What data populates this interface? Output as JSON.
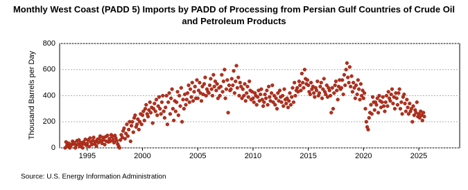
{
  "chart_data": {
    "type": "scatter",
    "title": "Monthly West Coast (PADD 5) Imports by PADD of Processing from Persian Gulf Countries of Crude Oil and Petroleum Products",
    "y_label": "Thousand Barrels per Day",
    "source": "Source: U.S. Energy Information Administration",
    "color": "#b5301c",
    "xlim": [
      1992.5,
      2028.7
    ],
    "xticks": [
      1995,
      2000,
      2005,
      2010,
      2015,
      2020,
      2025
    ],
    "ylim": [
      0,
      800
    ],
    "yticks": [
      0,
      200,
      400,
      600,
      800
    ],
    "grid": true,
    "x": [
      1993,
      1993.08,
      1993.17,
      1993.25,
      1993.33,
      1993.42,
      1993.5,
      1993.58,
      1993.67,
      1993.75,
      1993.83,
      1993.92,
      1994,
      1994.08,
      1994.17,
      1994.25,
      1994.33,
      1994.42,
      1994.5,
      1994.58,
      1994.67,
      1994.75,
      1994.83,
      1994.92,
      1995,
      1995.08,
      1995.17,
      1995.25,
      1995.33,
      1995.42,
      1995.5,
      1995.58,
      1995.67,
      1995.75,
      1995.83,
      1995.92,
      1996,
      1996.08,
      1996.17,
      1996.25,
      1996.33,
      1996.42,
      1996.5,
      1996.58,
      1996.67,
      1996.75,
      1996.83,
      1996.92,
      1997,
      1997.08,
      1997.17,
      1997.25,
      1997.33,
      1997.42,
      1997.5,
      1997.58,
      1997.67,
      1997.75,
      1997.83,
      1997.92,
      1998,
      1998.08,
      1998.17,
      1998.25,
      1998.33,
      1998.42,
      1998.5,
      1998.58,
      1998.67,
      1998.75,
      1998.83,
      1998.92,
      1999,
      1999.08,
      1999.17,
      1999.25,
      1999.33,
      1999.42,
      1999.5,
      1999.58,
      1999.67,
      1999.75,
      1999.83,
      1999.92,
      2000,
      2000.08,
      2000.17,
      2000.25,
      2000.33,
      2000.42,
      2000.5,
      2000.58,
      2000.67,
      2000.75,
      2000.83,
      2000.92,
      2001,
      2001.08,
      2001.17,
      2001.25,
      2001.33,
      2001.42,
      2001.5,
      2001.58,
      2001.67,
      2001.75,
      2001.83,
      2001.92,
      2002,
      2002.08,
      2002.17,
      2002.25,
      2002.33,
      2002.42,
      2002.5,
      2002.58,
      2002.67,
      2002.75,
      2002.83,
      2002.92,
      2003,
      2003.08,
      2003.17,
      2003.25,
      2003.33,
      2003.42,
      2003.5,
      2003.58,
      2003.67,
      2003.75,
      2003.83,
      2003.92,
      2004,
      2004.08,
      2004.17,
      2004.25,
      2004.33,
      2004.42,
      2004.5,
      2004.58,
      2004.67,
      2004.75,
      2004.83,
      2004.92,
      2005,
      2005.08,
      2005.17,
      2005.25,
      2005.33,
      2005.42,
      2005.5,
      2005.58,
      2005.67,
      2005.75,
      2005.83,
      2005.92,
      2006,
      2006.08,
      2006.17,
      2006.25,
      2006.33,
      2006.42,
      2006.5,
      2006.58,
      2006.67,
      2006.75,
      2006.83,
      2006.92,
      2007,
      2007.08,
      2007.17,
      2007.25,
      2007.33,
      2007.42,
      2007.5,
      2007.58,
      2007.67,
      2007.75,
      2007.83,
      2007.92,
      2008,
      2008.08,
      2008.17,
      2008.25,
      2008.33,
      2008.42,
      2008.5,
      2008.58,
      2008.67,
      2008.75,
      2008.83,
      2008.92,
      2009,
      2009.08,
      2009.17,
      2009.25,
      2009.33,
      2009.42,
      2009.5,
      2009.58,
      2009.67,
      2009.75,
      2009.83,
      2009.92,
      2010,
      2010.08,
      2010.17,
      2010.25,
      2010.33,
      2010.42,
      2010.5,
      2010.58,
      2010.67,
      2010.75,
      2010.83,
      2010.92,
      2011,
      2011.08,
      2011.17,
      2011.25,
      2011.33,
      2011.42,
      2011.5,
      2011.58,
      2011.67,
      2011.75,
      2011.83,
      2011.92,
      2012,
      2012.08,
      2012.17,
      2012.25,
      2012.33,
      2012.42,
      2012.5,
      2012.58,
      2012.67,
      2012.75,
      2012.83,
      2012.92,
      2013,
      2013.08,
      2013.17,
      2013.25,
      2013.33,
      2013.42,
      2013.5,
      2013.58,
      2013.67,
      2013.75,
      2013.83,
      2013.92,
      2014,
      2014.08,
      2014.17,
      2014.25,
      2014.33,
      2014.42,
      2014.5,
      2014.58,
      2014.67,
      2014.75,
      2014.83,
      2014.92,
      2015,
      2015.08,
      2015.17,
      2015.25,
      2015.33,
      2015.42,
      2015.5,
      2015.58,
      2015.67,
      2015.75,
      2015.83,
      2015.92,
      2016,
      2016.08,
      2016.17,
      2016.25,
      2016.33,
      2016.42,
      2016.5,
      2016.58,
      2016.67,
      2016.75,
      2016.83,
      2016.92,
      2017,
      2017.08,
      2017.17,
      2017.25,
      2017.33,
      2017.42,
      2017.5,
      2017.58,
      2017.67,
      2017.75,
      2017.83,
      2017.92,
      2018,
      2018.08,
      2018.17,
      2018.25,
      2018.33,
      2018.42,
      2018.5,
      2018.58,
      2018.67,
      2018.75,
      2018.83,
      2018.92,
      2019,
      2019.08,
      2019.17,
      2019.25,
      2019.33,
      2019.42,
      2019.5,
      2019.58,
      2019.67,
      2019.75,
      2019.83,
      2019.92,
      2020,
      2020.08,
      2020.17,
      2020.25,
      2020.33,
      2020.42,
      2020.5,
      2020.58,
      2020.67,
      2020.75,
      2020.83,
      2020.92,
      2021,
      2021.08,
      2021.17,
      2021.25,
      2021.33,
      2021.42,
      2021.5,
      2021.58,
      2021.67,
      2021.75,
      2021.83,
      2021.92,
      2022,
      2022.08,
      2022.17,
      2022.25,
      2022.33,
      2022.42,
      2022.5,
      2022.58,
      2022.67,
      2022.75,
      2022.83,
      2022.92,
      2023,
      2023.08,
      2023.17,
      2023.25,
      2023.33,
      2023.42,
      2023.5,
      2023.58,
      2023.67,
      2023.75,
      2023.83,
      2023.92,
      2024,
      2024.08,
      2024.17,
      2024.25,
      2024.33,
      2024.42,
      2024.5,
      2024.58,
      2024.67,
      2024.75,
      2024.83,
      2024.92,
      2025,
      2025.08,
      2025.17,
      2025.25,
      2025.33,
      2025.42,
      2025.5
    ],
    "values": [
      0,
      45,
      20,
      10,
      35,
      0,
      15,
      25,
      50,
      30,
      40,
      0,
      20,
      55,
      30,
      60,
      10,
      40,
      25,
      0,
      45,
      30,
      65,
      20,
      35,
      60,
      10,
      75,
      45,
      25,
      55,
      80,
      30,
      50,
      15,
      65,
      40,
      70,
      90,
      55,
      35,
      80,
      60,
      25,
      85,
      50,
      95,
      45,
      70,
      50,
      100,
      85,
      60,
      40,
      95,
      75,
      55,
      30,
      15,
      0,
      60,
      100,
      80,
      130,
      150,
      70,
      110,
      180,
      90,
      140,
      200,
      50,
      170,
      200,
      120,
      230,
      250,
      160,
      180,
      220,
      140,
      200,
      260,
      180,
      250,
      280,
      210,
      300,
      330,
      260,
      240,
      290,
      350,
      270,
      310,
      190,
      300,
      340,
      280,
      370,
      250,
      320,
      390,
      300,
      260,
      350,
      400,
      280,
      230,
      310,
      400,
      180,
      350,
      420,
      260,
      380,
      450,
      300,
      210,
      360,
      280,
      350,
      430,
      250,
      400,
      320,
      460,
      200,
      370,
      300,
      410,
      330,
      370,
      420,
      480,
      350,
      450,
      390,
      500,
      360,
      430,
      470,
      380,
      520,
      380,
      440,
      500,
      420,
      360,
      470,
      410,
      490,
      540,
      400,
      450,
      430,
      420,
      480,
      530,
      450,
      400,
      560,
      470,
      510,
      440,
      490,
      380,
      460,
      400,
      470,
      560,
      430,
      510,
      600,
      380,
      450,
      520,
      270,
      480,
      440,
      450,
      530,
      480,
      590,
      420,
      510,
      630,
      460,
      540,
      400,
      500,
      470,
      380,
      450,
      400,
      490,
      360,
      420,
      470,
      390,
      510,
      440,
      370,
      430,
      380,
      350,
      420,
      400,
      330,
      390,
      440,
      360,
      410,
      450,
      370,
      320,
      350,
      410,
      380,
      440,
      330,
      470,
      390,
      360,
      420,
      480,
      350,
      400,
      330,
      380,
      300,
      420,
      360,
      440,
      390,
      350,
      400,
      320,
      450,
      370,
      340,
      380,
      310,
      360,
      420,
      330,
      390,
      460,
      350,
      500,
      400,
      440,
      460,
      430,
      510,
      480,
      440,
      570,
      500,
      460,
      600,
      530,
      490,
      520,
      480,
      430,
      410,
      500,
      450,
      470,
      420,
      390,
      460,
      440,
      510,
      400,
      420,
      470,
      500,
      380,
      450,
      530,
      430,
      410,
      480,
      390,
      460,
      440,
      400,
      270,
      460,
      300,
      420,
      480,
      510,
      440,
      370,
      470,
      520,
      450,
      460,
      520,
      410,
      560,
      480,
      600,
      650,
      540,
      500,
      620,
      470,
      550,
      430,
      500,
      460,
      380,
      480,
      410,
      520,
      450,
      370,
      490,
      400,
      440,
      380,
      420,
      300,
      200,
      160,
      140,
      230,
      270,
      330,
      260,
      390,
      350,
      290,
      350,
      330,
      380,
      270,
      400,
      360,
      310,
      350,
      390,
      320,
      280,
      350,
      400,
      320,
      430,
      380,
      360,
      410,
      450,
      340,
      390,
      300,
      420,
      380,
      330,
      420,
      450,
      300,
      350,
      260,
      390,
      410,
      340,
      280,
      370,
      310,
      260,
      340,
      280,
      300,
      200,
      320,
      250,
      290,
      270,
      350,
      240,
      260,
      230,
      280,
      250,
      210,
      270,
      240
    ]
  }
}
